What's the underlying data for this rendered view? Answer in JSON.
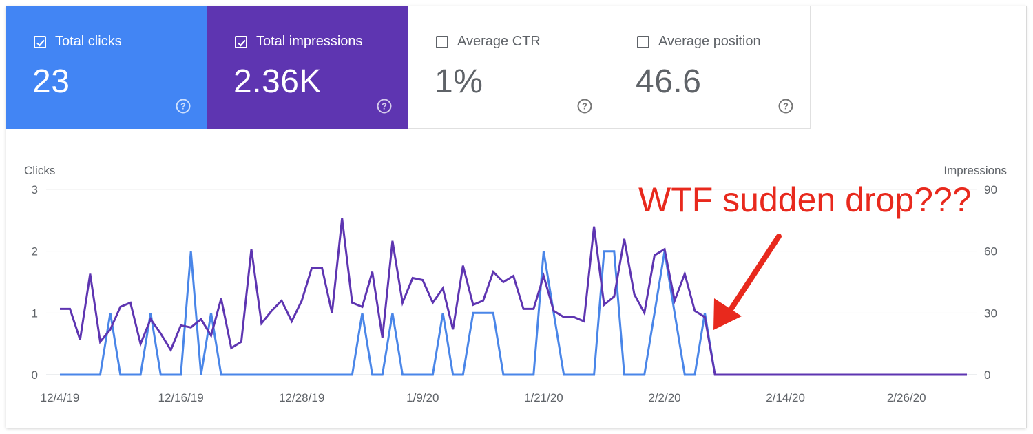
{
  "metrics": [
    {
      "label": "Total clicks",
      "value": "23",
      "checked": true,
      "color": "#4285f4"
    },
    {
      "label": "Total impressions",
      "value": "2.36K",
      "checked": true,
      "color": "#5e35b1"
    },
    {
      "label": "Average CTR",
      "value": "1%",
      "checked": false
    },
    {
      "label": "Average position",
      "value": "46.6",
      "checked": false
    }
  ],
  "annotation": {
    "text": "WTF sudden drop???",
    "color": "#e8291d"
  },
  "chart_data": {
    "type": "line",
    "x_dates_start": "12/4/19",
    "x_tick_labels": [
      "12/4/19",
      "12/16/19",
      "12/28/19",
      "1/9/20",
      "1/21/20",
      "2/2/20",
      "2/14/20",
      "2/26/20"
    ],
    "x_tick_index": [
      0,
      12,
      24,
      36,
      48,
      60,
      72,
      84
    ],
    "left_axis": {
      "label": "Clicks",
      "ticks": [
        0,
        1,
        2,
        3
      ],
      "range": [
        0,
        3
      ]
    },
    "right_axis": {
      "label": "Impressions",
      "ticks": [
        0,
        30,
        60,
        90
      ],
      "range": [
        0,
        90
      ]
    },
    "grid": true,
    "series": [
      {
        "name": "Clicks",
        "axis": "left",
        "color": "#4a86e8",
        "values": [
          0,
          0,
          0,
          0,
          0,
          1,
          0,
          0,
          0,
          1,
          0,
          0,
          0,
          2,
          0,
          1,
          0,
          0,
          0,
          0,
          0,
          0,
          0,
          0,
          0,
          0,
          0,
          0,
          0,
          0,
          1,
          0,
          0,
          1,
          0,
          0,
          0,
          0,
          1,
          0,
          0,
          1,
          1,
          1,
          0,
          0,
          0,
          0,
          2,
          1,
          0,
          0,
          0,
          0,
          2,
          2,
          0,
          0,
          0,
          1,
          2,
          1,
          0,
          0,
          1,
          0,
          0,
          0,
          0,
          0,
          0,
          0,
          0,
          0,
          0,
          0,
          0,
          0,
          0,
          0,
          0,
          0,
          0,
          0,
          0,
          0,
          0,
          0,
          0,
          0,
          0
        ]
      },
      {
        "name": "Impressions",
        "axis": "right",
        "color": "#5e35b1",
        "values": [
          32,
          32,
          17,
          49,
          16,
          22,
          33,
          35,
          15,
          27,
          20,
          12,
          24,
          23,
          27,
          19,
          37,
          13,
          16,
          61,
          25,
          31,
          36,
          26,
          36,
          52,
          52,
          30,
          76,
          35,
          33,
          50,
          18,
          65,
          35,
          47,
          46,
          35,
          42,
          22,
          53,
          34,
          36,
          50,
          45,
          48,
          32,
          32,
          48,
          31,
          28,
          28,
          26,
          72,
          34,
          38,
          66,
          39,
          30,
          58,
          61,
          36,
          49,
          31,
          28,
          0,
          0,
          0,
          0,
          0,
          0,
          0,
          0,
          0,
          0,
          0,
          0,
          0,
          0,
          0,
          0,
          0,
          0,
          0,
          0,
          0,
          0,
          0,
          0,
          0,
          0
        ]
      }
    ]
  }
}
